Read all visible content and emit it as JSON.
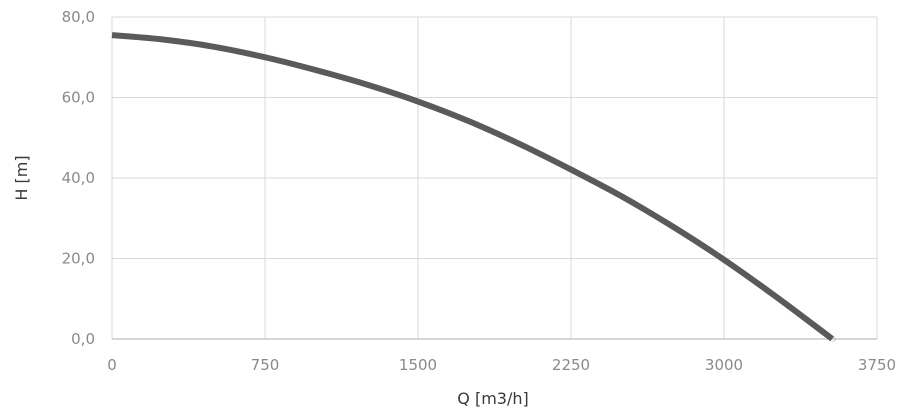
{
  "chart_data": {
    "type": "line",
    "title": "",
    "xlabel": "Q [m3/h]",
    "ylabel": "H [m]",
    "xlim": [
      0,
      3750
    ],
    "ylim": [
      0,
      80
    ],
    "x_ticks": [
      0,
      750,
      1500,
      2250,
      3000,
      3750
    ],
    "x_tick_labels": [
      "0",
      "750",
      "1500",
      "2250",
      "3000",
      "3750"
    ],
    "y_ticks": [
      0,
      20,
      40,
      60,
      80
    ],
    "y_tick_labels": [
      "0,0",
      "20,0",
      "40,0",
      "60,0",
      "80,0"
    ],
    "grid": true,
    "legend": "none",
    "colors": {
      "series": "#5a5a5a",
      "grid": "#d9d9d9",
      "tick_text": "#8a8a8a",
      "axis_title": "#3a3a3a"
    },
    "series": [
      {
        "x": [
          0,
          250,
          500,
          750,
          1000,
          1250,
          1500,
          1750,
          2000,
          2250,
          2500,
          2750,
          3000,
          3250,
          3500,
          3530
        ],
        "y": [
          75.5,
          74.4,
          72.6,
          70.0,
          66.8,
          63.2,
          59.0,
          54.1,
          48.4,
          42.1,
          35.4,
          27.9,
          19.7,
          10.7,
          1.2,
          0.0
        ]
      }
    ]
  }
}
